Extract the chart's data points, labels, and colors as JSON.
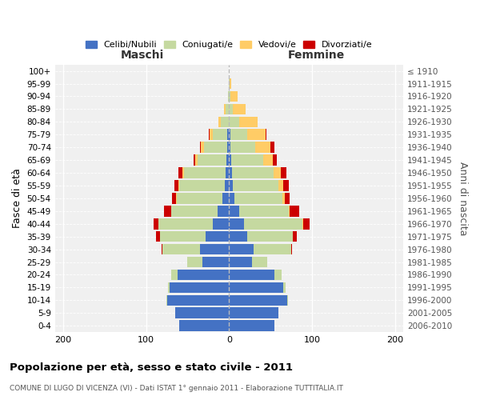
{
  "age_groups": [
    "0-4",
    "5-9",
    "10-14",
    "15-19",
    "20-24",
    "25-29",
    "30-34",
    "35-39",
    "40-44",
    "45-49",
    "50-54",
    "55-59",
    "60-64",
    "65-69",
    "70-74",
    "75-79",
    "80-84",
    "85-89",
    "90-94",
    "95-99",
    "100+"
  ],
  "birth_years": [
    "2006-2010",
    "2001-2005",
    "1996-2000",
    "1991-1995",
    "1986-1990",
    "1981-1985",
    "1976-1980",
    "1971-1975",
    "1966-1970",
    "1961-1965",
    "1956-1960",
    "1951-1955",
    "1946-1950",
    "1941-1945",
    "1936-1940",
    "1931-1935",
    "1926-1930",
    "1921-1925",
    "1916-1920",
    "1911-1915",
    "≤ 1910"
  ],
  "maschi": {
    "celibi": [
      60,
      65,
      75,
      72,
      62,
      32,
      35,
      28,
      20,
      14,
      8,
      5,
      4,
      3,
      2,
      2,
      0,
      0,
      0,
      0,
      0
    ],
    "coniugati": [
      0,
      0,
      1,
      2,
      8,
      18,
      45,
      55,
      65,
      56,
      55,
      55,
      50,
      35,
      28,
      18,
      10,
      4,
      1,
      0,
      0
    ],
    "vedovi": [
      0,
      0,
      0,
      0,
      0,
      0,
      0,
      0,
      0,
      0,
      1,
      1,
      2,
      3,
      4,
      3,
      3,
      2,
      0,
      0,
      0
    ],
    "divorziati": [
      0,
      0,
      0,
      0,
      0,
      0,
      1,
      5,
      6,
      8,
      5,
      5,
      5,
      2,
      1,
      1,
      0,
      0,
      0,
      0,
      0
    ]
  },
  "femmine": {
    "nubili": [
      55,
      60,
      70,
      65,
      55,
      28,
      30,
      22,
      18,
      12,
      6,
      5,
      4,
      3,
      2,
      2,
      0,
      0,
      0,
      0,
      0
    ],
    "coniugate": [
      0,
      0,
      1,
      3,
      8,
      18,
      45,
      55,
      70,
      60,
      58,
      55,
      50,
      38,
      30,
      20,
      12,
      5,
      2,
      1,
      0
    ],
    "vedove": [
      0,
      0,
      0,
      0,
      0,
      0,
      0,
      0,
      1,
      1,
      3,
      5,
      8,
      12,
      18,
      22,
      22,
      15,
      8,
      2,
      0
    ],
    "divorziate": [
      0,
      0,
      0,
      0,
      0,
      0,
      1,
      5,
      8,
      12,
      6,
      7,
      7,
      5,
      5,
      1,
      0,
      0,
      0,
      0,
      0
    ]
  },
  "colors": {
    "celibi": "#4472C4",
    "coniugati": "#C5D9A0",
    "vedovi": "#FFCC66",
    "divorziati": "#CC0000"
  },
  "xlim": [
    -210,
    210
  ],
  "xticks": [
    -200,
    -100,
    0,
    100,
    200
  ],
  "xticklabels": [
    "200",
    "100",
    "0",
    "100",
    "200"
  ],
  "title": "Popolazione per età, sesso e stato civile - 2011",
  "subtitle": "COMUNE DI LUGO DI VICENZA (VI) - Dati ISTAT 1° gennaio 2011 - Elaborazione TUTTITALIA.IT",
  "ylabel_left": "Fasce di età",
  "ylabel_right": "Anni di nascita",
  "label_maschi": "Maschi",
  "label_femmine": "Femmine",
  "legend_labels": [
    "Celibi/Nubili",
    "Coniugati/e",
    "Vedovi/e",
    "Divorziati/e"
  ],
  "bg_color": "#f0f0f0",
  "bar_height": 0.85
}
